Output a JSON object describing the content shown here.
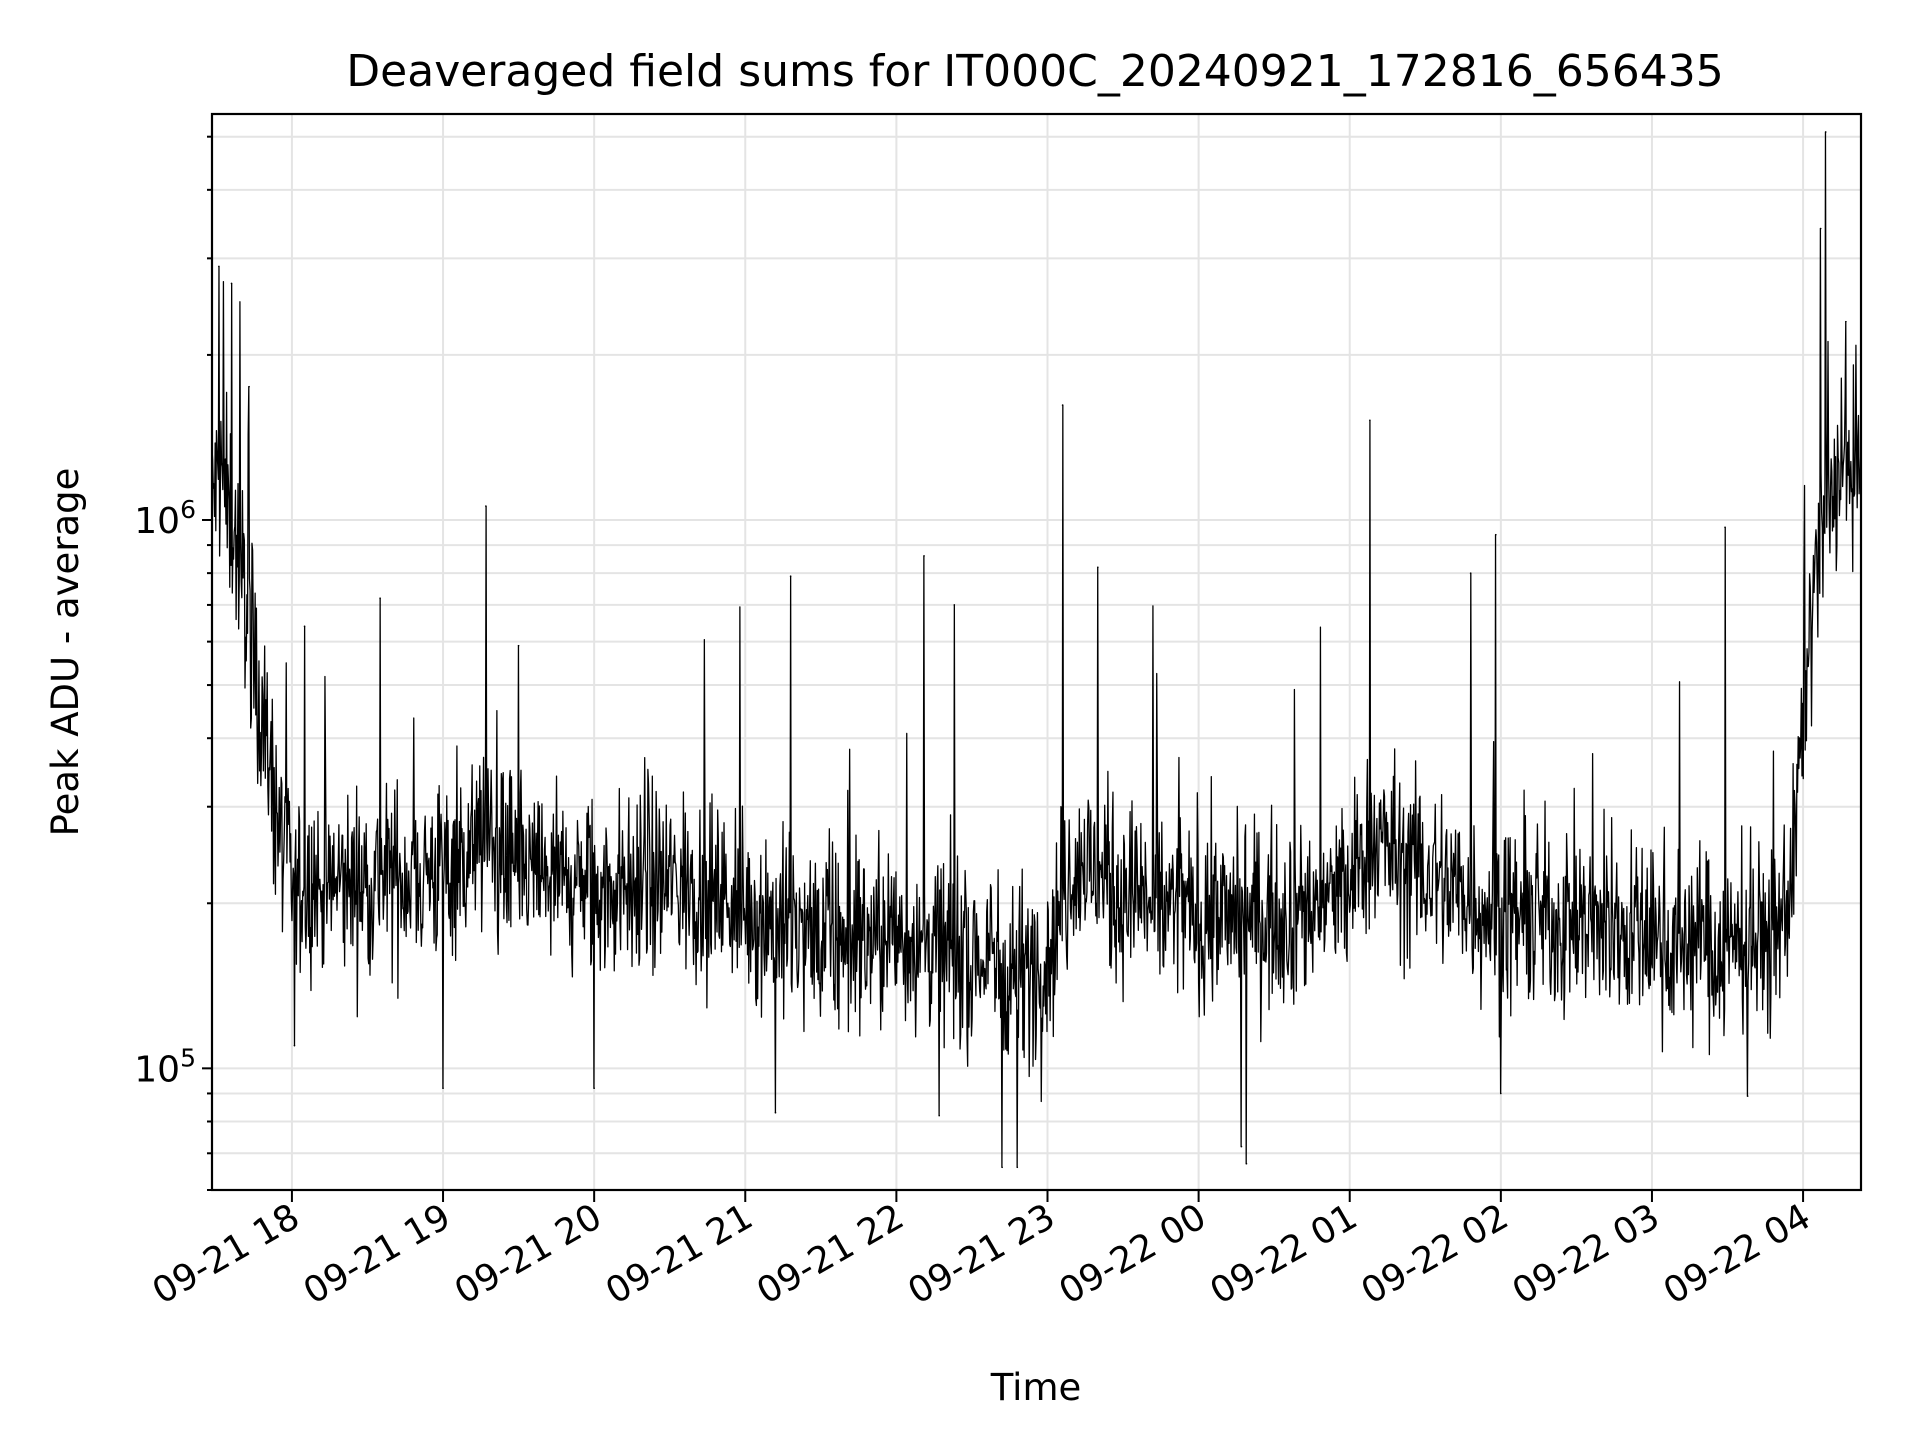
{
  "chart_data": {
    "type": "line",
    "title": "Deaveraged field sums for IT000C_20240921_172816_656435",
    "xlabel": "Time",
    "ylabel": "Peak ADU - average",
    "y_scale": "log",
    "ylim": [
      60000,
      5500000
    ],
    "xlim": [
      "2024-09-21 17:28:16",
      "2024-09-22 04:23:00"
    ],
    "grid": true,
    "line_color": "#000000",
    "x_tick_labels": [
      "09-21 18",
      "09-21 19",
      "09-21 20",
      "09-21 21",
      "09-21 22",
      "09-21 23",
      "09-22 00",
      "09-22 01",
      "09-22 02",
      "09-22 03",
      "09-22 04"
    ],
    "x_tick_times": [
      "2024-09-21 18:00",
      "2024-09-21 19:00",
      "2024-09-21 20:00",
      "2024-09-21 21:00",
      "2024-09-21 22:00",
      "2024-09-21 23:00",
      "2024-09-22 00:00",
      "2024-09-22 01:00",
      "2024-09-22 02:00",
      "2024-09-22 03:00",
      "2024-09-22 04:00"
    ],
    "y_ticks": [
      {
        "value": 100000,
        "base": "10",
        "exp": "5"
      },
      {
        "value": 1000000,
        "base": "10",
        "exp": "6"
      }
    ],
    "series": [
      {
        "x": [
          "2024-09-21 17:28",
          "2024-09-21 17:32",
          "2024-09-21 17:36",
          "2024-09-21 17:40",
          "2024-09-21 17:44",
          "2024-09-21 17:48",
          "2024-09-21 17:52",
          "2024-09-21 18:00",
          "2024-09-21 18:30",
          "2024-09-21 19:00",
          "2024-09-21 19:15",
          "2024-09-21 19:30",
          "2024-09-21 20:00",
          "2024-09-21 20:30",
          "2024-09-21 21:00",
          "2024-09-21 21:15",
          "2024-09-21 21:30",
          "2024-09-21 22:00",
          "2024-09-21 22:30",
          "2024-09-21 22:50",
          "2024-09-21 23:00",
          "2024-09-21 23:10",
          "2024-09-21 23:30",
          "2024-09-22 00:00",
          "2024-09-22 00:30",
          "2024-09-22 01:00",
          "2024-09-22 01:08",
          "2024-09-22 01:20",
          "2024-09-22 01:40",
          "2024-09-22 02:00",
          "2024-09-22 02:30",
          "2024-09-22 03:00",
          "2024-09-22 03:30",
          "2024-09-22 03:50",
          "2024-09-22 03:56",
          "2024-09-22 04:00",
          "2024-09-22 04:06",
          "2024-09-22 04:12",
          "2024-09-22 04:18",
          "2024-09-22 04:23"
        ],
        "values": [
          1100000,
          1200000,
          1000000,
          800000,
          620000,
          450000,
          330000,
          210000,
          220000,
          230000,
          260000,
          230000,
          210000,
          220000,
          200000,
          180000,
          170000,
          175000,
          160000,
          150000,
          160000,
          240000,
          210000,
          190000,
          190000,
          210000,
          270000,
          240000,
          215000,
          190000,
          185000,
          175000,
          165000,
          175000,
          230000,
          450000,
          850000,
          1150000,
          1200000,
          1250000
        ]
      }
    ],
    "spikes": [
      {
        "x": "2024-09-21 17:31",
        "y": 2900000
      },
      {
        "x": "2024-09-21 17:36",
        "y": 2700000
      },
      {
        "x": "2024-09-21 17:43",
        "y": 1750000
      },
      {
        "x": "2024-09-21 18:05",
        "y": 640000
      },
      {
        "x": "2024-09-21 18:35",
        "y": 720000
      },
      {
        "x": "2024-09-21 19:17",
        "y": 1060000
      },
      {
        "x": "2024-09-21 19:30",
        "y": 590000
      },
      {
        "x": "2024-09-21 21:18",
        "y": 790000
      },
      {
        "x": "2024-09-21 22:11",
        "y": 860000
      },
      {
        "x": "2024-09-21 22:23",
        "y": 700000
      },
      {
        "x": "2024-09-21 23:06",
        "y": 1620000
      },
      {
        "x": "2024-09-21 23:20",
        "y": 820000
      },
      {
        "x": "2024-09-22 01:08",
        "y": 1520000
      },
      {
        "x": "2024-09-22 01:48",
        "y": 800000
      },
      {
        "x": "2024-09-22 01:58",
        "y": 940000
      },
      {
        "x": "2024-09-22 03:29",
        "y": 970000
      },
      {
        "x": "2024-09-22 04:09",
        "y": 5100000
      },
      {
        "x": "2024-09-22 04:07",
        "y": 3400000
      },
      {
        "x": "2024-09-22 04:17",
        "y": 2300000
      }
    ],
    "dips": [
      {
        "x": "2024-09-21 18:01",
        "y": 110000
      },
      {
        "x": "2024-09-21 19:00",
        "y": 92000
      },
      {
        "x": "2024-09-21 20:00",
        "y": 92000
      },
      {
        "x": "2024-09-21 21:12",
        "y": 83000
      },
      {
        "x": "2024-09-21 22:17",
        "y": 82000
      },
      {
        "x": "2024-09-21 22:42",
        "y": 66000
      },
      {
        "x": "2024-09-21 22:48",
        "y": 66000
      },
      {
        "x": "2024-09-22 00:17",
        "y": 72000
      },
      {
        "x": "2024-09-22 00:19",
        "y": 67000
      },
      {
        "x": "2024-09-22 02:00",
        "y": 90000
      },
      {
        "x": "2024-09-22 03:38",
        "y": 89000
      }
    ]
  }
}
